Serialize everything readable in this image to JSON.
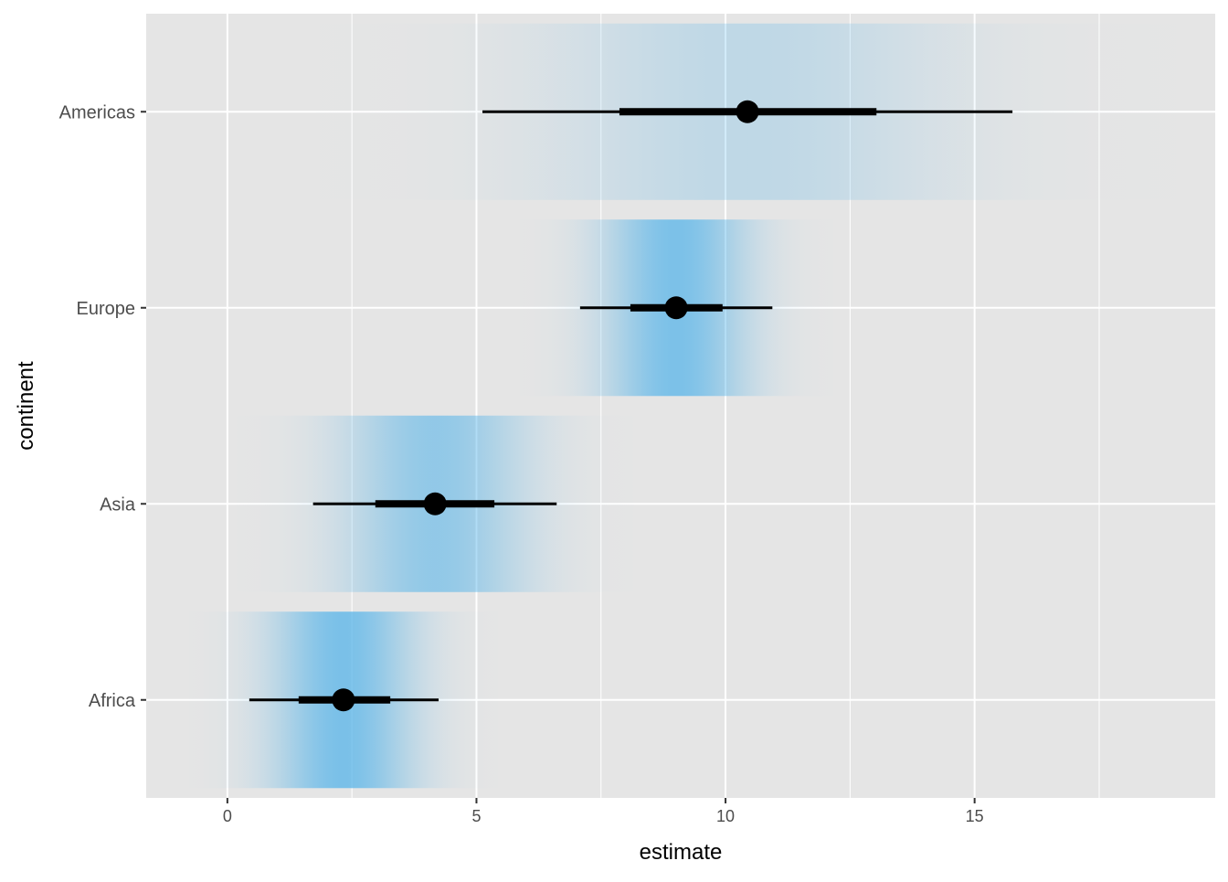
{
  "chart_data": {
    "type": "interval",
    "xlabel": "estimate",
    "ylabel": "continent",
    "xlim": [
      -1.63,
      19.83
    ],
    "x_ticks": [
      0,
      5,
      10,
      15
    ],
    "x_tick_labels": [
      "0",
      "5",
      "10",
      "15"
    ],
    "grid": true,
    "fill_color": "#56B4E9",
    "categories": [
      "Africa",
      "Asia",
      "Europe",
      "Americas"
    ],
    "groups": [
      {
        "name": "Africa",
        "point": 2.33,
        "inner": [
          1.43,
          3.27
        ],
        "outer": [
          0.44,
          4.24
        ]
      },
      {
        "name": "Asia",
        "point": 4.17,
        "inner": [
          2.97,
          5.36
        ],
        "outer": [
          1.72,
          6.61
        ]
      },
      {
        "name": "Europe",
        "point": 9.01,
        "inner": [
          8.09,
          9.94
        ],
        "outer": [
          7.08,
          10.94
        ]
      },
      {
        "name": "Americas",
        "point": 10.44,
        "inner": [
          7.87,
          13.03
        ],
        "outer": [
          5.12,
          15.76
        ]
      }
    ]
  }
}
